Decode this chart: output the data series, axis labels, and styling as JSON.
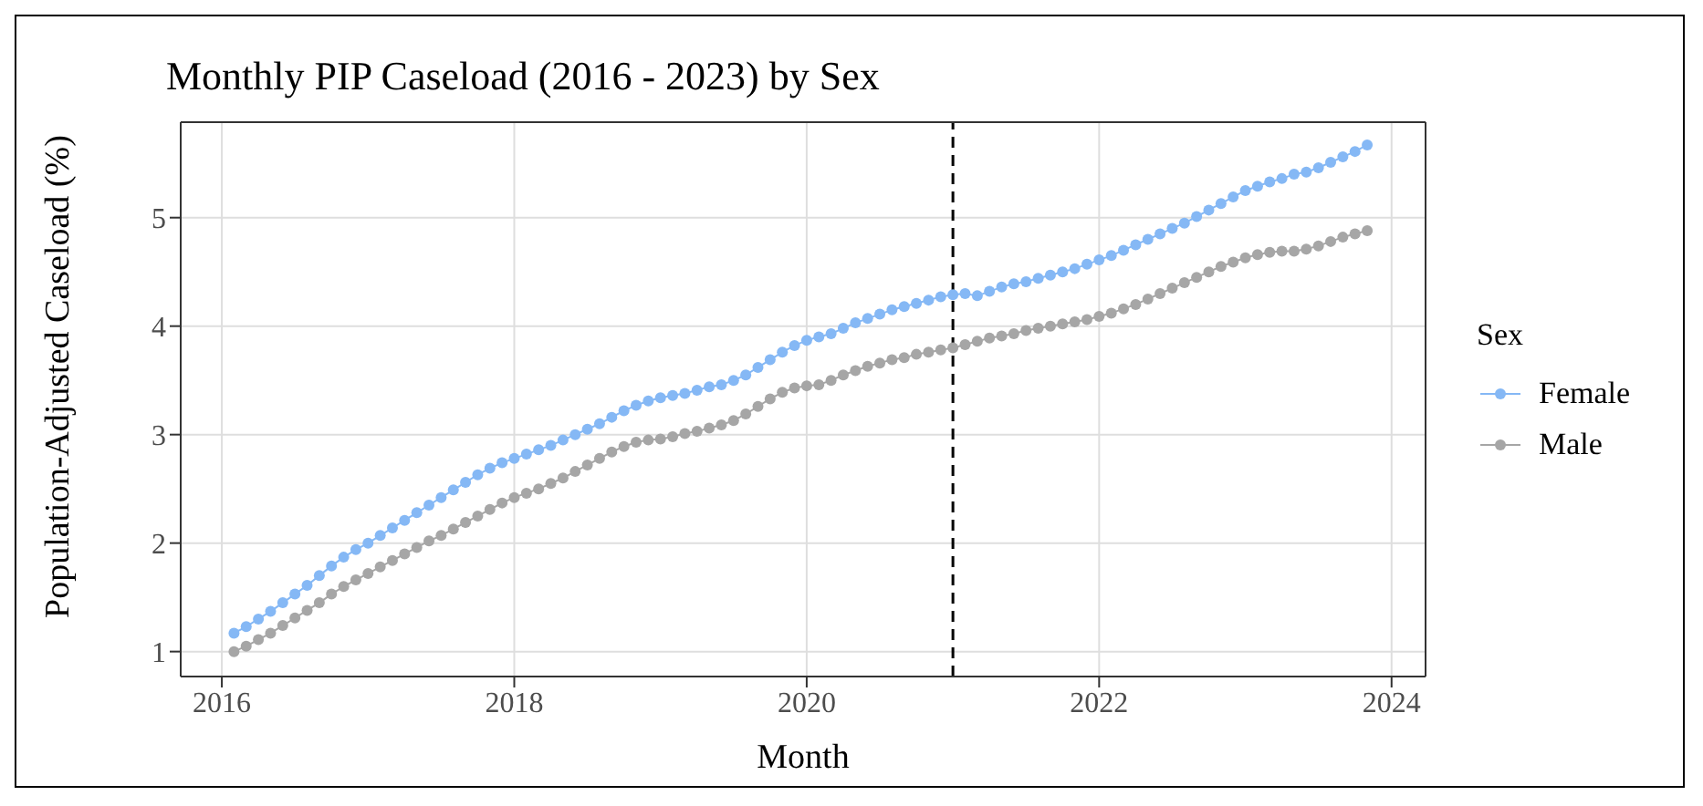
{
  "chart_data": {
    "type": "line",
    "title": "Monthly PIP Caseload (2016 - 2023) by Sex",
    "xlabel": "Month",
    "ylabel": "Population-Adjusted Caseload (%)",
    "legend_title": "Sex",
    "legend": "right",
    "grid": true,
    "marker": "circle",
    "line_style": "solid",
    "x": [
      "2016-02",
      "2016-03",
      "2016-04",
      "2016-05",
      "2016-06",
      "2016-07",
      "2016-08",
      "2016-09",
      "2016-10",
      "2016-11",
      "2016-12",
      "2017-01",
      "2017-02",
      "2017-03",
      "2017-04",
      "2017-05",
      "2017-06",
      "2017-07",
      "2017-08",
      "2017-09",
      "2017-10",
      "2017-11",
      "2017-12",
      "2018-01",
      "2018-02",
      "2018-03",
      "2018-04",
      "2018-05",
      "2018-06",
      "2018-07",
      "2018-08",
      "2018-09",
      "2018-10",
      "2018-11",
      "2018-12",
      "2019-01",
      "2019-02",
      "2019-03",
      "2019-04",
      "2019-05",
      "2019-06",
      "2019-07",
      "2019-08",
      "2019-09",
      "2019-10",
      "2019-11",
      "2019-12",
      "2020-01",
      "2020-02",
      "2020-03",
      "2020-04",
      "2020-05",
      "2020-06",
      "2020-07",
      "2020-08",
      "2020-09",
      "2020-10",
      "2020-11",
      "2020-12",
      "2021-01",
      "2021-02",
      "2021-03",
      "2021-04",
      "2021-05",
      "2021-06",
      "2021-07",
      "2021-08",
      "2021-09",
      "2021-10",
      "2021-11",
      "2021-12",
      "2022-01",
      "2022-02",
      "2022-03",
      "2022-04",
      "2022-05",
      "2022-06",
      "2022-07",
      "2022-08",
      "2022-09",
      "2022-10",
      "2022-11",
      "2022-12",
      "2023-01",
      "2023-02",
      "2023-03",
      "2023-04",
      "2023-05",
      "2023-06",
      "2023-07",
      "2023-08",
      "2023-09",
      "2023-10",
      "2023-11"
    ],
    "series": [
      {
        "name": "Female",
        "color": "#85b8f5",
        "values": [
          1.17,
          1.23,
          1.3,
          1.37,
          1.45,
          1.53,
          1.61,
          1.7,
          1.79,
          1.87,
          1.94,
          2.0,
          2.07,
          2.14,
          2.21,
          2.28,
          2.35,
          2.42,
          2.49,
          2.56,
          2.63,
          2.69,
          2.74,
          2.78,
          2.82,
          2.86,
          2.9,
          2.95,
          3.0,
          3.05,
          3.1,
          3.16,
          3.22,
          3.27,
          3.31,
          3.34,
          3.36,
          3.38,
          3.41,
          3.44,
          3.46,
          3.5,
          3.55,
          3.62,
          3.69,
          3.76,
          3.82,
          3.87,
          3.9,
          3.93,
          3.98,
          4.03,
          4.07,
          4.11,
          4.15,
          4.18,
          4.21,
          4.24,
          4.27,
          4.29,
          4.3,
          4.28,
          4.32,
          4.36,
          4.39,
          4.41,
          4.44,
          4.47,
          4.5,
          4.53,
          4.57,
          4.61,
          4.65,
          4.7,
          4.75,
          4.8,
          4.85,
          4.9,
          4.95,
          5.01,
          5.07,
          5.13,
          5.19,
          5.25,
          5.29,
          5.33,
          5.36,
          5.4,
          5.42,
          5.46,
          5.51,
          5.56,
          5.61,
          5.67
        ]
      },
      {
        "name": "Male",
        "color": "#a6a6a6",
        "values": [
          1.0,
          1.05,
          1.11,
          1.17,
          1.24,
          1.31,
          1.38,
          1.45,
          1.53,
          1.6,
          1.66,
          1.72,
          1.78,
          1.84,
          1.9,
          1.96,
          2.02,
          2.07,
          2.13,
          2.19,
          2.25,
          2.31,
          2.37,
          2.42,
          2.46,
          2.5,
          2.55,
          2.6,
          2.66,
          2.72,
          2.78,
          2.84,
          2.89,
          2.93,
          2.95,
          2.96,
          2.98,
          3.01,
          3.03,
          3.06,
          3.09,
          3.13,
          3.19,
          3.26,
          3.33,
          3.39,
          3.43,
          3.45,
          3.46,
          3.5,
          3.55,
          3.59,
          3.63,
          3.66,
          3.69,
          3.71,
          3.74,
          3.76,
          3.78,
          3.8,
          3.83,
          3.86,
          3.89,
          3.91,
          3.93,
          3.96,
          3.98,
          4.0,
          4.02,
          4.04,
          4.06,
          4.09,
          4.12,
          4.16,
          4.2,
          4.25,
          4.3,
          4.35,
          4.4,
          4.45,
          4.5,
          4.55,
          4.59,
          4.63,
          4.66,
          4.68,
          4.69,
          4.69,
          4.71,
          4.74,
          4.78,
          4.82,
          4.85,
          4.88
        ]
      }
    ],
    "xlim": [
      "2015-09-20",
      "2024-03-25"
    ],
    "xticks": [
      "2016",
      "2018",
      "2020",
      "2022",
      "2024"
    ],
    "ylim": [
      0.77,
      5.88
    ],
    "yticks": [
      1,
      2,
      3,
      4,
      5
    ],
    "ref_lines": [
      {
        "axis": "x",
        "value": "2021-01",
        "color": "#000000",
        "line_style": "dashed"
      }
    ]
  }
}
